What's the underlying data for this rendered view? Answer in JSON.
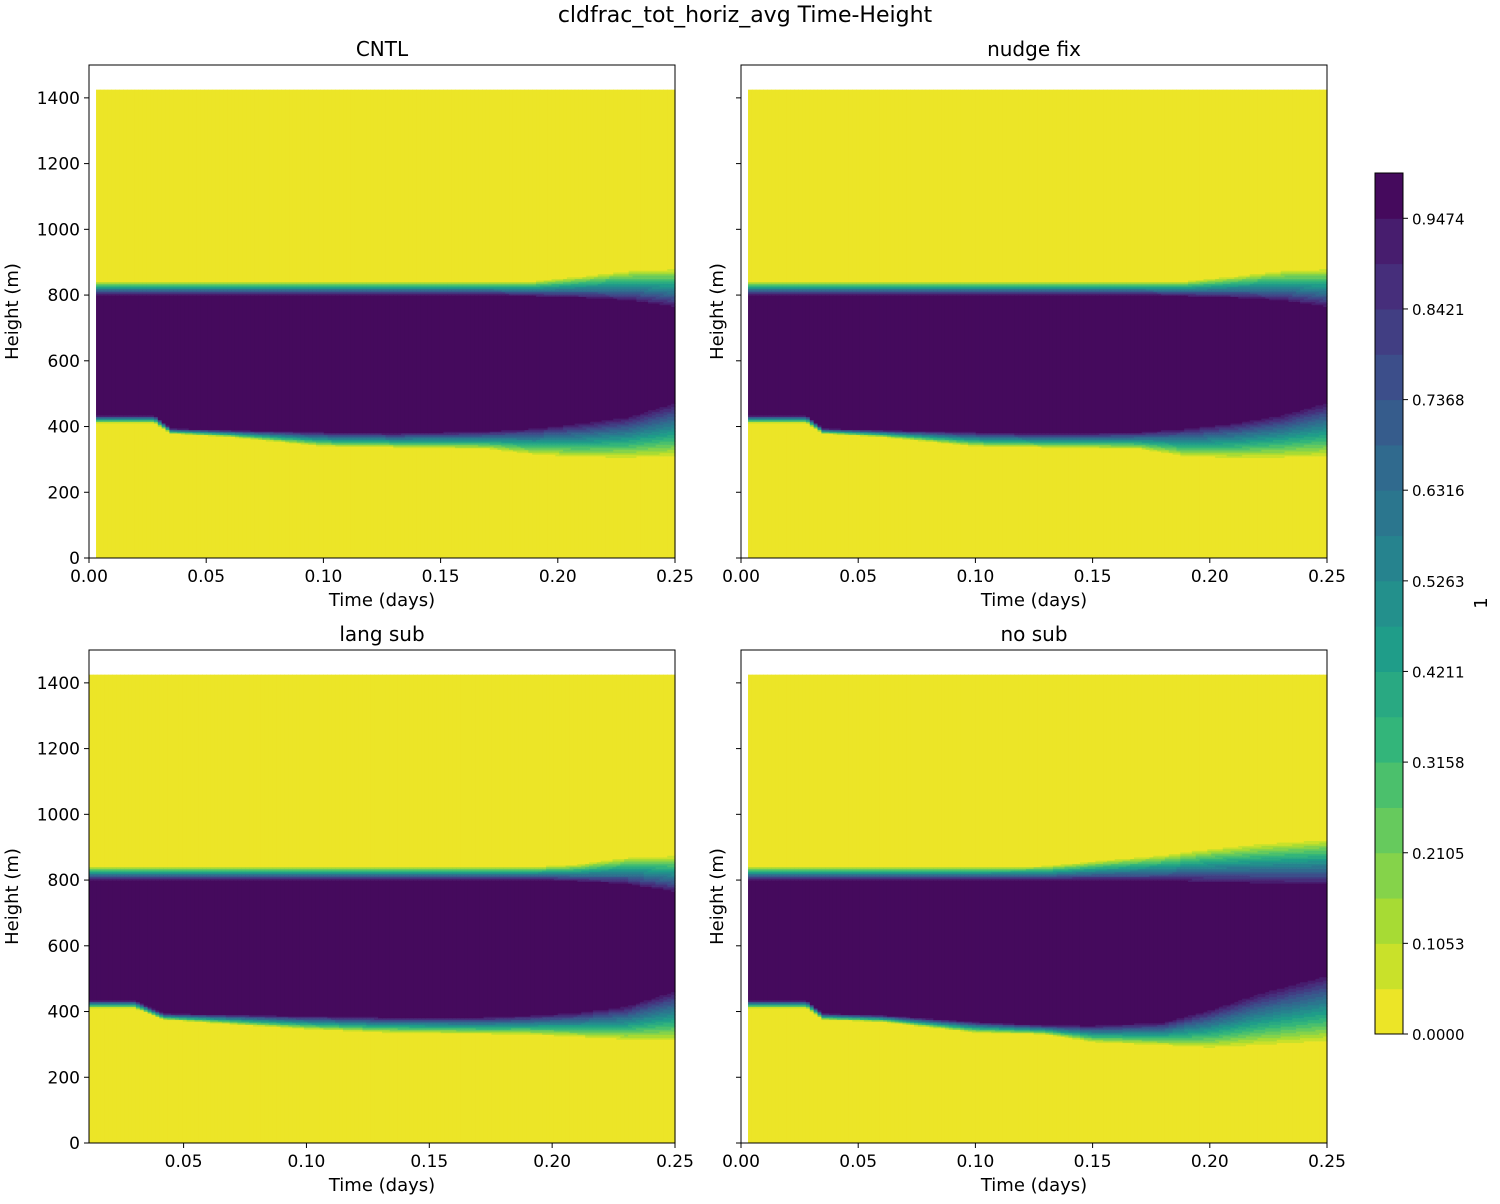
{
  "chart_data": {
    "type": "heatmap",
    "subtype": "filled-contour",
    "title": "cldfrac_tot_horiz_avg Time-Height",
    "colorbar": {
      "label": "1",
      "range": [
        0,
        1
      ],
      "levels": 19,
      "tick_labels": [
        "0.0000",
        "0.1053",
        "0.2105",
        "0.3158",
        "0.4211",
        "0.5263",
        "0.6316",
        "0.7368",
        "0.8421",
        "0.9474"
      ],
      "tick_values": [
        0,
        0.1053,
        0.2105,
        0.3158,
        0.4211,
        0.5263,
        0.6316,
        0.7368,
        0.8421,
        0.9474
      ],
      "colormap": "viridis_r"
    },
    "panels": [
      {
        "title": "CNTL",
        "xlabel": "Time (days)",
        "ylabel": "Height (m)",
        "xlim": [
          0,
          0.25
        ],
        "ylim": [
          0,
          1500
        ],
        "xticks": [
          "0.00",
          "0.05",
          "0.10",
          "0.15",
          "0.20",
          "0.25"
        ],
        "xtick_values": [
          0,
          0.05,
          0.1,
          0.15,
          0.2,
          0.25
        ],
        "yticks": [
          "0",
          "200",
          "400",
          "600",
          "800",
          "1000",
          "1200",
          "1400"
        ],
        "show_ylabels": true,
        "data_xrange": [
          0.003,
          0.25
        ],
        "data_top": 1425,
        "time": [
          0.003,
          0.028,
          0.035,
          0.06,
          0.1,
          0.13,
          0.17,
          0.19,
          0.21,
          0.23,
          0.25
        ],
        "cloud_base_0": [
          410,
          410,
          378,
          368,
          338,
          335,
          330,
          312,
          302,
          300,
          300
        ],
        "cloud_base_1": [
          435,
          435,
          395,
          390,
          385,
          382,
          388,
          398,
          415,
          435,
          480
        ],
        "cloud_top_1": [
          800,
          800,
          800,
          800,
          800,
          800,
          800,
          795,
          790,
          780,
          760
        ],
        "cloud_top_0": [
          842,
          842,
          842,
          842,
          842,
          842,
          842,
          845,
          860,
          878,
          885
        ]
      },
      {
        "title": "nudge fix",
        "xlabel": "Time (days)",
        "ylabel": "Height (m)",
        "xlim": [
          0,
          0.25
        ],
        "ylim": [
          0,
          1500
        ],
        "xticks": [
          "0.00",
          "0.05",
          "0.10",
          "0.15",
          "0.20",
          "0.25"
        ],
        "xtick_values": [
          0,
          0.05,
          0.1,
          0.15,
          0.2,
          0.25
        ],
        "yticks": [
          "0",
          "200",
          "400",
          "600",
          "800",
          "1000",
          "1200",
          "1400"
        ],
        "show_ylabels": false,
        "data_xrange": [
          0.003,
          0.25
        ],
        "data_top": 1425,
        "time": [
          0.003,
          0.028,
          0.035,
          0.06,
          0.1,
          0.13,
          0.17,
          0.19,
          0.21,
          0.23,
          0.25
        ],
        "cloud_base_0": [
          410,
          410,
          378,
          368,
          338,
          335,
          330,
          305,
          300,
          300,
          300
        ],
        "cloud_base_1": [
          435,
          435,
          395,
          390,
          385,
          380,
          385,
          398,
          415,
          440,
          480
        ],
        "cloud_top_1": [
          800,
          800,
          800,
          800,
          800,
          800,
          800,
          795,
          790,
          780,
          760
        ],
        "cloud_top_0": [
          842,
          842,
          842,
          842,
          842,
          842,
          842,
          845,
          860,
          878,
          885
        ]
      },
      {
        "title": "lang sub",
        "xlabel": "Time (days)",
        "ylabel": "Height (m)",
        "xlim": [
          0.0115,
          0.25
        ],
        "ylim": [
          0,
          1500
        ],
        "xticks": [
          "0.05",
          "0.10",
          "0.15",
          "0.20",
          "0.25"
        ],
        "xtick_values": [
          0.05,
          0.1,
          0.15,
          0.2,
          0.25
        ],
        "yticks": [
          "0",
          "200",
          "400",
          "600",
          "800",
          "1000",
          "1200",
          "1400"
        ],
        "show_ylabels": true,
        "data_xrange": [
          0.0115,
          0.25
        ],
        "data_top": 1425,
        "time": [
          0.0115,
          0.03,
          0.042,
          0.07,
          0.1,
          0.13,
          0.17,
          0.19,
          0.21,
          0.23,
          0.25
        ],
        "cloud_base_0": [
          410,
          410,
          375,
          360,
          345,
          335,
          330,
          328,
          320,
          310,
          305
        ],
        "cloud_base_1": [
          435,
          435,
          395,
          392,
          388,
          385,
          385,
          390,
          400,
          420,
          470
        ],
        "cloud_top_1": [
          800,
          800,
          800,
          800,
          800,
          800,
          800,
          800,
          795,
          785,
          760
        ],
        "cloud_top_0": [
          842,
          842,
          842,
          842,
          842,
          842,
          842,
          842,
          850,
          872,
          880
        ]
      },
      {
        "title": "no sub",
        "xlabel": "Time (days)",
        "ylabel": "Height (m)",
        "xlim": [
          0,
          0.25
        ],
        "ylim": [
          0,
          1500
        ],
        "xticks": [
          "0.00",
          "0.05",
          "0.10",
          "0.15",
          "0.20",
          "0.25"
        ],
        "xtick_values": [
          0,
          0.05,
          0.1,
          0.15,
          0.2,
          0.25
        ],
        "yticks": [
          "0",
          "200",
          "400",
          "600",
          "800",
          "1000",
          "1200",
          "1400"
        ],
        "show_ylabels": false,
        "data_xrange": [
          0.003,
          0.25
        ],
        "data_top": 1425,
        "time": [
          0.003,
          0.028,
          0.035,
          0.06,
          0.1,
          0.13,
          0.15,
          0.18,
          0.2,
          0.22,
          0.25
        ],
        "cloud_base_0": [
          410,
          410,
          375,
          368,
          335,
          330,
          305,
          295,
          285,
          290,
          300
        ],
        "cloud_base_1": [
          435,
          435,
          395,
          390,
          370,
          360,
          360,
          370,
          410,
          460,
          520
        ],
        "cloud_top_1": [
          800,
          800,
          800,
          800,
          800,
          800,
          798,
          795,
          790,
          785,
          780
        ],
        "cloud_top_0": [
          842,
          842,
          842,
          842,
          842,
          845,
          860,
          880,
          900,
          915,
          930
        ]
      }
    ]
  }
}
